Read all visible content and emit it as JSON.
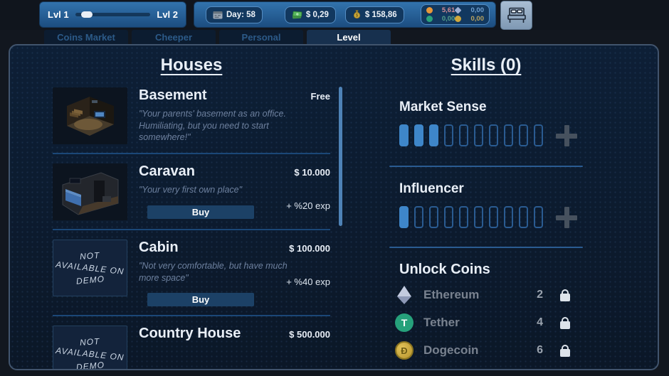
{
  "top_bar": {
    "level": {
      "left": "Lvl 1",
      "right": "Lvl 2",
      "progress": "8%"
    },
    "day": "Day: 58",
    "cash": "$ 0,29",
    "bank": "$ 158,86",
    "tickers": [
      {
        "name": "Bitcoin",
        "value": "5,61",
        "color": "#e8973a",
        "value_color": "#d48e96"
      },
      {
        "name": "Ethereum",
        "value": "0,00",
        "color": "#9fb0d6",
        "value_color": "#6f9fd0"
      },
      {
        "name": "Tether",
        "value": "0,00",
        "color": "#2aa17b",
        "value_color": "#55a08b"
      },
      {
        "name": "Dogecoin",
        "value": "0,00",
        "color": "#d1a83c",
        "value_color": "#b9a25f"
      }
    ]
  },
  "tabs": [
    {
      "label": "Coins Market",
      "active": false
    },
    {
      "label": "Cheeper",
      "active": false
    },
    {
      "label": "Personal",
      "active": false
    },
    {
      "label": "Level",
      "active": true
    }
  ],
  "houses": {
    "title": "Houses",
    "buy_label": "Buy",
    "items": [
      {
        "name": "Basement",
        "price": "Free",
        "description": "\"Your parents' basement as an office. Humiliating, but you need to start somewhere!\""
      },
      {
        "name": "Caravan",
        "price": "$ 10.000",
        "description": "\"Your very first own place\"",
        "exp": "+ %20 exp"
      },
      {
        "name": "Cabin",
        "price": "$ 100.000",
        "description": "\"Not very comfortable, but have much more space\"",
        "exp": "+ %40 exp",
        "note_lines": [
          "NOT",
          "AVAILABLE ON",
          "DEMO"
        ]
      },
      {
        "name": "Country House",
        "price": "$ 500.000",
        "note_lines": [
          "NOT",
          "AVAILABLE ON",
          "DEMO"
        ]
      }
    ]
  },
  "skills": {
    "title": "Skills (0)",
    "items": [
      {
        "name": "Market Sense",
        "filled": 3,
        "total": 10
      },
      {
        "name": "Influencer",
        "filled": 1,
        "total": 10
      }
    ],
    "unlock": {
      "title": "Unlock Coins",
      "items": [
        {
          "name": "Ethereum",
          "level": "2"
        },
        {
          "name": "Tether",
          "level": "4",
          "symbol": "T"
        },
        {
          "name": "Dogecoin",
          "level": "6",
          "symbol": "Ð"
        }
      ]
    }
  },
  "colors": {
    "panel_border": "#41546d",
    "separator": "#1b4777",
    "skill_bar_filled": "#3e86c9",
    "skill_bar_empty_border": "#2a5b91",
    "buy_button": "#1c4166",
    "active_tab_text": "#ffffff",
    "inactive_tab_text": "#2c5a88",
    "hud_panel_top": "#3273ad",
    "hud_panel_bottom": "#1c4d80"
  }
}
